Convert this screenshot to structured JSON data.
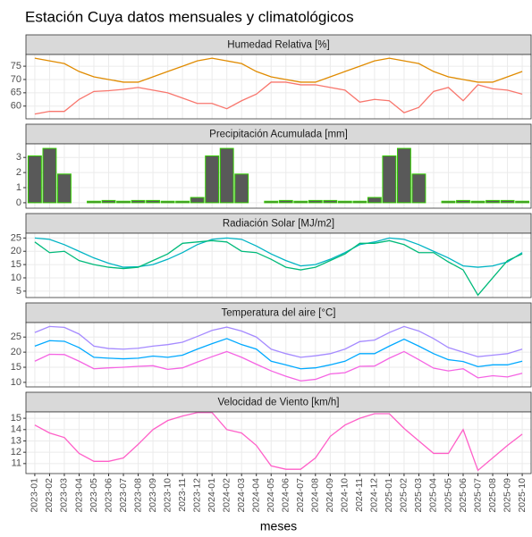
{
  "title": "Estación Cuya datos mensuales y climatológicos",
  "chart_data": [
    {
      "type": "line",
      "title": "Humedad Relativa [%]",
      "categories": [
        "2023-01",
        "2023-02",
        "2023-03",
        "2023-04",
        "2023-05",
        "2023-06",
        "2023-07",
        "2023-08",
        "2023-09",
        "2023-10",
        "2023-11",
        "2023-12",
        "2024-01",
        "2024-02",
        "2024-03",
        "2024-04",
        "2024-05",
        "2024-06",
        "2024-07",
        "2024-08",
        "2024-09",
        "2024-10",
        "2024-11",
        "2024-12",
        "2025-01",
        "2025-02",
        "2025-03",
        "2025-04",
        "2025-05",
        "2025-06",
        "2025-07",
        "2025-08",
        "2025-09",
        "2025-10"
      ],
      "series": [
        {
          "color": "#e08b00",
          "values": [
            78,
            77,
            76,
            73,
            71,
            70,
            69,
            69,
            71,
            73,
            75,
            77,
            78,
            77,
            76,
            73,
            71,
            70,
            69,
            69,
            71,
            73,
            75,
            77,
            78,
            77,
            76,
            73,
            71,
            70,
            69,
            69,
            71,
            73
          ]
        },
        {
          "color": "#f8766d",
          "values": [
            57,
            58,
            58,
            62.5,
            65.5,
            65.8,
            66.3,
            67,
            66,
            65,
            63,
            61,
            61,
            59,
            62,
            64.5,
            69,
            69,
            68,
            68,
            67,
            66,
            61.5,
            62.5,
            62,
            57.5,
            59.5,
            65.5,
            67,
            62,
            68,
            66.5,
            66,
            64.5
          ]
        }
      ],
      "ylim": [
        55.2,
        79.4
      ],
      "yticks": [
        60,
        65,
        70,
        75
      ],
      "grid": true
    },
    {
      "type": "bar",
      "title": "Precipitación Acumulada [mm]",
      "categories": [
        "2023-01",
        "2023-02",
        "2023-03",
        "2023-04",
        "2023-05",
        "2023-06",
        "2023-07",
        "2023-08",
        "2023-09",
        "2023-10",
        "2023-11",
        "2023-12",
        "2024-01",
        "2024-02",
        "2024-03",
        "2024-04",
        "2024-05",
        "2024-06",
        "2024-07",
        "2024-08",
        "2024-09",
        "2024-10",
        "2024-11",
        "2024-12",
        "2025-01",
        "2025-02",
        "2025-03",
        "2025-04",
        "2025-05",
        "2025-06",
        "2025-07",
        "2025-08",
        "2025-09",
        "2025-10"
      ],
      "values": [
        3.1,
        3.6,
        1.9,
        0,
        0.1,
        0.15,
        0.1,
        0.15,
        0.15,
        0.1,
        0.1,
        0.35,
        3.1,
        3.6,
        1.9,
        0,
        0.1,
        0.15,
        0.1,
        0.15,
        0.15,
        0.1,
        0.1,
        0.35,
        3.1,
        3.6,
        1.9,
        0,
        0.1,
        0.15,
        0.1,
        0.15,
        0.15,
        0.1
      ],
      "color": "#595959",
      "edge_color": "#33cc00",
      "ylim": [
        -0.36,
        3.9
      ],
      "yticks": [
        0,
        1,
        2,
        3
      ],
      "grid": true
    },
    {
      "type": "line",
      "title": "Radiación Solar [MJ/m2]",
      "categories": [
        "2023-01",
        "2023-02",
        "2023-03",
        "2023-04",
        "2023-05",
        "2023-06",
        "2023-07",
        "2023-08",
        "2023-09",
        "2023-10",
        "2023-11",
        "2023-12",
        "2024-01",
        "2024-02",
        "2024-03",
        "2024-04",
        "2024-05",
        "2024-06",
        "2024-07",
        "2024-08",
        "2024-09",
        "2024-10",
        "2024-11",
        "2024-12",
        "2025-01",
        "2025-02",
        "2025-03",
        "2025-04",
        "2025-05",
        "2025-06",
        "2025-07",
        "2025-08",
        "2025-09",
        "2025-10"
      ],
      "series": [
        {
          "color": "#00b4c4",
          "values": [
            25,
            24.5,
            22.5,
            20,
            17.5,
            15.5,
            14,
            14.2,
            15,
            17,
            19.5,
            22.5,
            24.5,
            25,
            24.5,
            22,
            19,
            16.5,
            14.5,
            15,
            17,
            19.5,
            22.5,
            23.5,
            25,
            24.5,
            22.5,
            20,
            17.5,
            14.5,
            14,
            14.5,
            16,
            19.5
          ]
        },
        {
          "color": "#00ba7a",
          "values": [
            23.5,
            19.5,
            20,
            16.5,
            15,
            14,
            13.5,
            14,
            16.5,
            19,
            23,
            23.5,
            24,
            23.5,
            20,
            19.5,
            17,
            14,
            13,
            14,
            16.5,
            19,
            23,
            23,
            24,
            22.5,
            19.5,
            19.5,
            16,
            13,
            3.5,
            10,
            16.5,
            19
          ]
        }
      ],
      "ylim": [
        2.6,
        26.8
      ],
      "yticks": [
        5,
        10,
        15,
        20,
        25
      ],
      "grid": true
    },
    {
      "type": "line",
      "title": "Temperatura del aire [°C]",
      "categories": [
        "2023-01",
        "2023-02",
        "2023-03",
        "2023-04",
        "2023-05",
        "2023-06",
        "2023-07",
        "2023-08",
        "2023-09",
        "2023-10",
        "2023-11",
        "2023-12",
        "2024-01",
        "2024-02",
        "2024-03",
        "2024-04",
        "2024-05",
        "2024-06",
        "2024-07",
        "2024-08",
        "2024-09",
        "2024-10",
        "2024-11",
        "2024-12",
        "2025-01",
        "2025-02",
        "2025-03",
        "2025-04",
        "2025-05",
        "2025-06",
        "2025-07",
        "2025-08",
        "2025-09",
        "2025-10"
      ],
      "series": [
        {
          "color": "#a58aff",
          "values": [
            26.5,
            28.5,
            28.2,
            26,
            22,
            21.2,
            21,
            21.3,
            22,
            22.5,
            23.3,
            25.2,
            27.2,
            28.3,
            27,
            25,
            21,
            19.5,
            18.3,
            18.8,
            19.5,
            21,
            23.5,
            24,
            26.5,
            28.5,
            27,
            24.5,
            21.5,
            20,
            18.5,
            19,
            19.5,
            21
          ]
        },
        {
          "color": "#00a9ff",
          "values": [
            22,
            23.8,
            23.6,
            21.5,
            18.3,
            18,
            17.8,
            18,
            18.7,
            18.3,
            19,
            21,
            22.8,
            24.5,
            22.5,
            21,
            17,
            15.8,
            14.5,
            14.8,
            15.8,
            17,
            19.5,
            19.5,
            22,
            24.3,
            22,
            19.5,
            17.5,
            16.9,
            15.2,
            15.8,
            15.8,
            17
          ]
        },
        {
          "color": "#f564e3",
          "values": [
            17,
            19.3,
            19.2,
            17,
            14.5,
            14.8,
            15,
            15.3,
            15.5,
            14.3,
            14.8,
            16.7,
            18.5,
            20.2,
            18.3,
            16,
            13.8,
            12,
            10.5,
            11,
            12.8,
            13.2,
            15.3,
            15.4,
            18,
            20.2,
            17.5,
            14.7,
            13.8,
            14.5,
            11.5,
            12.2,
            11.8,
            13
          ]
        }
      ],
      "ylim": [
        8.5,
        29.8
      ],
      "yticks": [
        10,
        15,
        20,
        25
      ],
      "grid": true
    },
    {
      "type": "line",
      "title": "Velocidad de Viento [km/h]",
      "xlabel": "meses",
      "categories": [
        "2023-01",
        "2023-02",
        "2023-03",
        "2023-04",
        "2023-05",
        "2023-06",
        "2023-07",
        "2023-08",
        "2023-09",
        "2023-10",
        "2023-11",
        "2023-12",
        "2024-01",
        "2024-02",
        "2024-03",
        "2024-04",
        "2024-05",
        "2024-06",
        "2024-07",
        "2024-08",
        "2024-09",
        "2024-10",
        "2024-11",
        "2024-12",
        "2025-01",
        "2025-02",
        "2025-03",
        "2025-04",
        "2025-05",
        "2025-06",
        "2025-07",
        "2025-08",
        "2025-09",
        "2025-10"
      ],
      "series": [
        {
          "color": "#ff5fc8",
          "values": [
            14.4,
            13.7,
            13.3,
            11.9,
            11.2,
            11.2,
            11.5,
            12.7,
            14,
            14.8,
            15.2,
            15.5,
            15.5,
            14,
            13.7,
            12.6,
            10.8,
            10.5,
            10.5,
            11.5,
            13.4,
            14.4,
            15,
            15.4,
            15.4,
            14.1,
            13,
            11.9,
            11.9,
            14,
            10.4,
            11.5,
            12.6,
            13.6
          ]
        }
      ],
      "ylim": [
        10.12,
        15.56
      ],
      "yticks": [
        11,
        12,
        13,
        14,
        15
      ],
      "grid": true
    }
  ]
}
